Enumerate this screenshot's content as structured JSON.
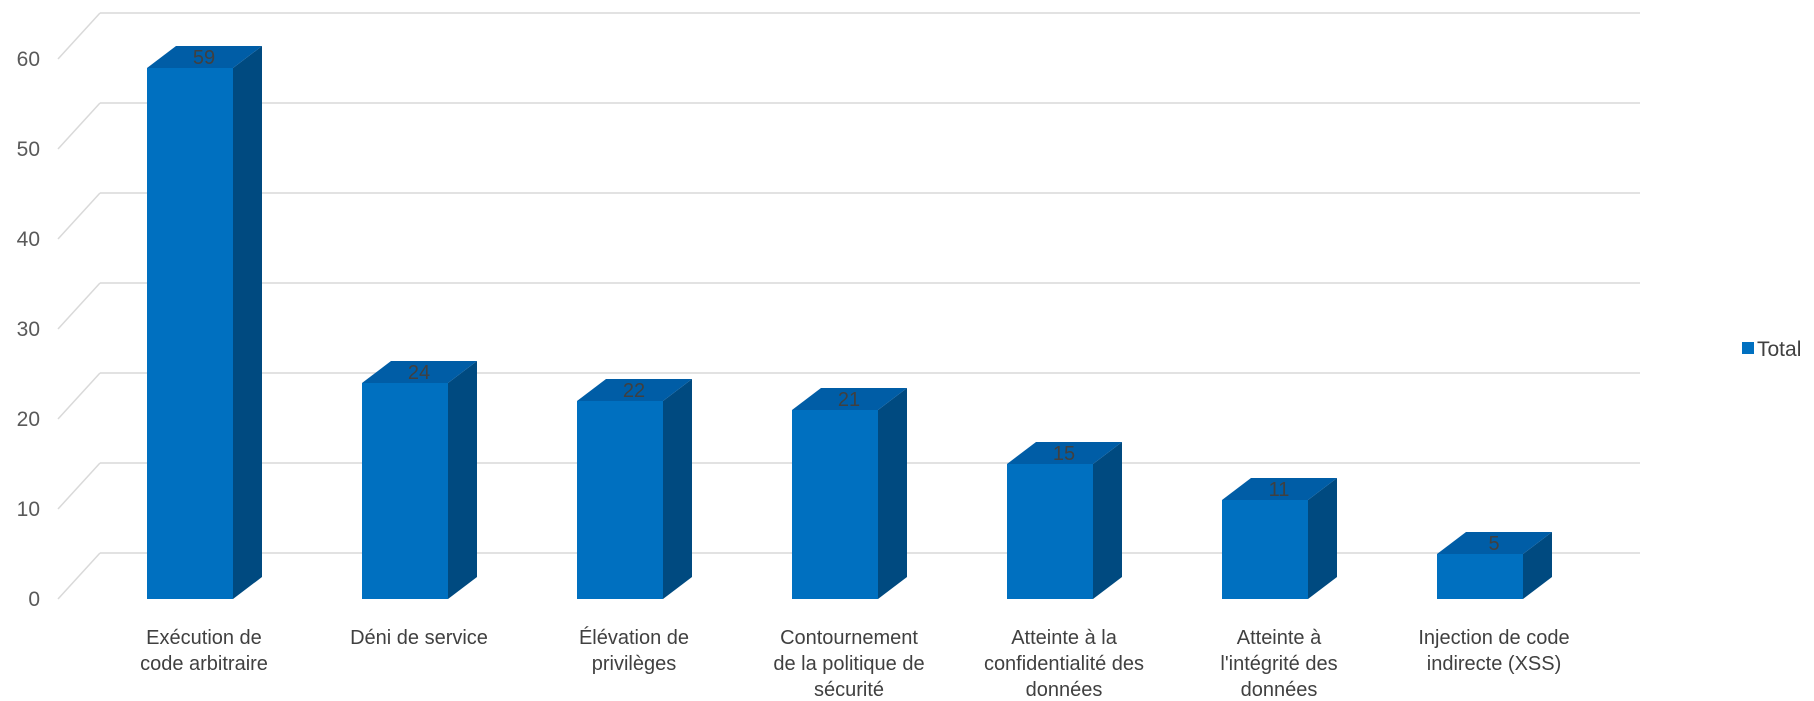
{
  "chart_data": {
    "type": "bar",
    "categories": [
      [
        "Exécution de",
        "code arbitraire"
      ],
      [
        "Déni de service"
      ],
      [
        "Élévation de",
        "privilèges"
      ],
      [
        "Contournement",
        "de la politique de",
        "sécurité"
      ],
      [
        "Atteinte à la",
        "confidentialité des",
        "données"
      ],
      [
        "Atteinte à",
        "l'intégrité des",
        "données"
      ],
      [
        "Injection de code",
        "indirecte (XSS)"
      ]
    ],
    "series": [
      {
        "name": "Total",
        "values": [
          59,
          24,
          22,
          21,
          15,
          11,
          5
        ]
      }
    ],
    "yticks": [
      "0",
      "10",
      "20",
      "30",
      "40",
      "50",
      "60"
    ],
    "ylim": [
      0,
      65
    ],
    "grid": true,
    "legend": "right",
    "style": "3d-column"
  },
  "colors": {
    "bar_front": "#0070C0",
    "bar_side": "#004A80",
    "bar_top": "#005DA6",
    "grid": "#D9D9D9"
  }
}
